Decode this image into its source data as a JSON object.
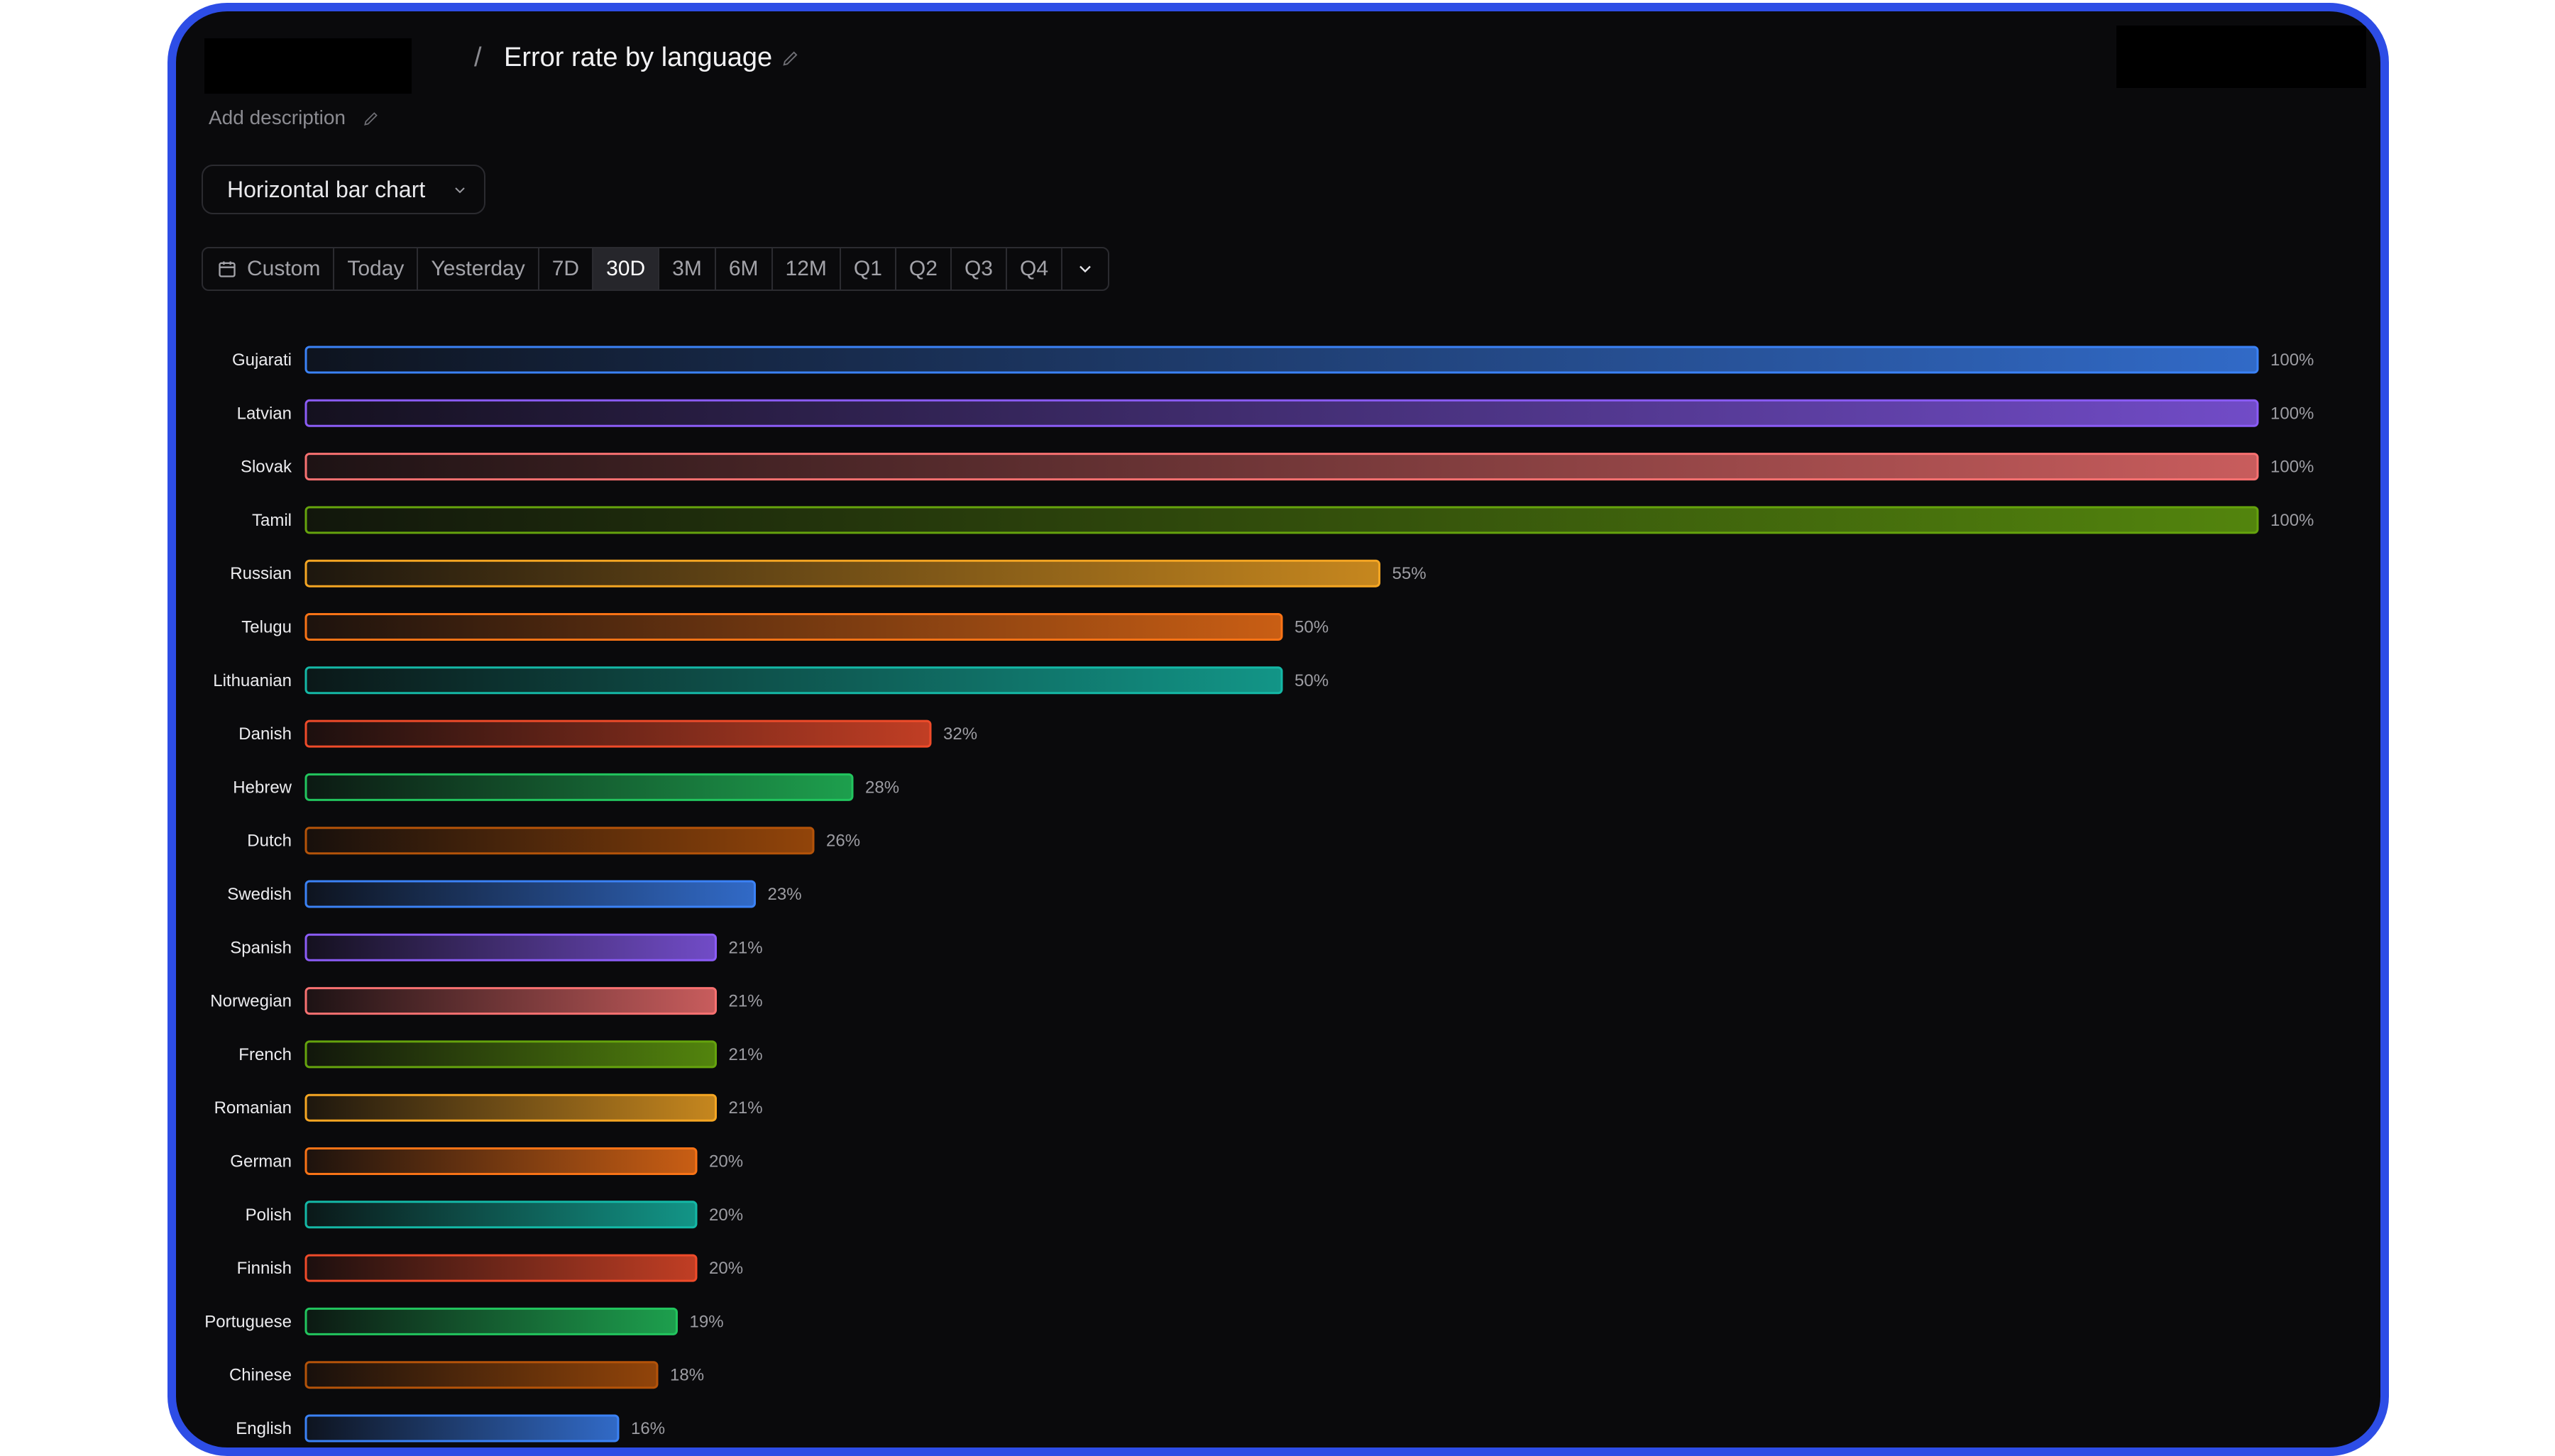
{
  "header": {
    "separator": "/",
    "title": "Error rate by language",
    "description_placeholder": "Add description"
  },
  "chart_type_select": {
    "value": "Horizontal bar chart"
  },
  "date_range": {
    "items": [
      "Custom",
      "Today",
      "Yesterday",
      "7D",
      "30D",
      "3M",
      "6M",
      "12M",
      "Q1",
      "Q2",
      "Q3",
      "Q4"
    ],
    "active": "30D"
  },
  "colors": {
    "frame": "#2d4de6",
    "background": "#0a0a0c"
  },
  "chart_data": {
    "type": "bar",
    "orientation": "horizontal",
    "categories": [
      "Gujarati",
      "Latvian",
      "Slovak",
      "Tamil",
      "Russian",
      "Telugu",
      "Lithuanian",
      "Danish",
      "Hebrew",
      "Dutch",
      "Swedish",
      "Spanish",
      "Norwegian",
      "French",
      "Romanian",
      "German",
      "Polish",
      "Finnish",
      "Portuguese",
      "Chinese",
      "English"
    ],
    "values": [
      100,
      100,
      100,
      100,
      55,
      50,
      50,
      32,
      28,
      26,
      23,
      21,
      21,
      21,
      21,
      20,
      20,
      20,
      19,
      18,
      16
    ],
    "value_labels": [
      "100%",
      "100%",
      "100%",
      "100%",
      "55%",
      "50%",
      "50%",
      "32%",
      "28%",
      "26%",
      "23%",
      "21%",
      "21%",
      "21%",
      "21%",
      "20%",
      "20%",
      "20%",
      "19%",
      "18%",
      "16%"
    ],
    "bar_colors": [
      "#3b82f6",
      "#8b5cf6",
      "#f87171",
      "#65a30d",
      "#f5a623",
      "#f97316",
      "#14b8a6",
      "#ef4b2a",
      "#22c55e",
      "#b45309",
      "#3b82f6",
      "#8b5cf6",
      "#f87171",
      "#65a30d",
      "#f5a623",
      "#f97316",
      "#14b8a6",
      "#ef4b2a",
      "#22c55e",
      "#b45309",
      "#3b82f6"
    ],
    "xlim": [
      0,
      100
    ],
    "unit": "%"
  }
}
